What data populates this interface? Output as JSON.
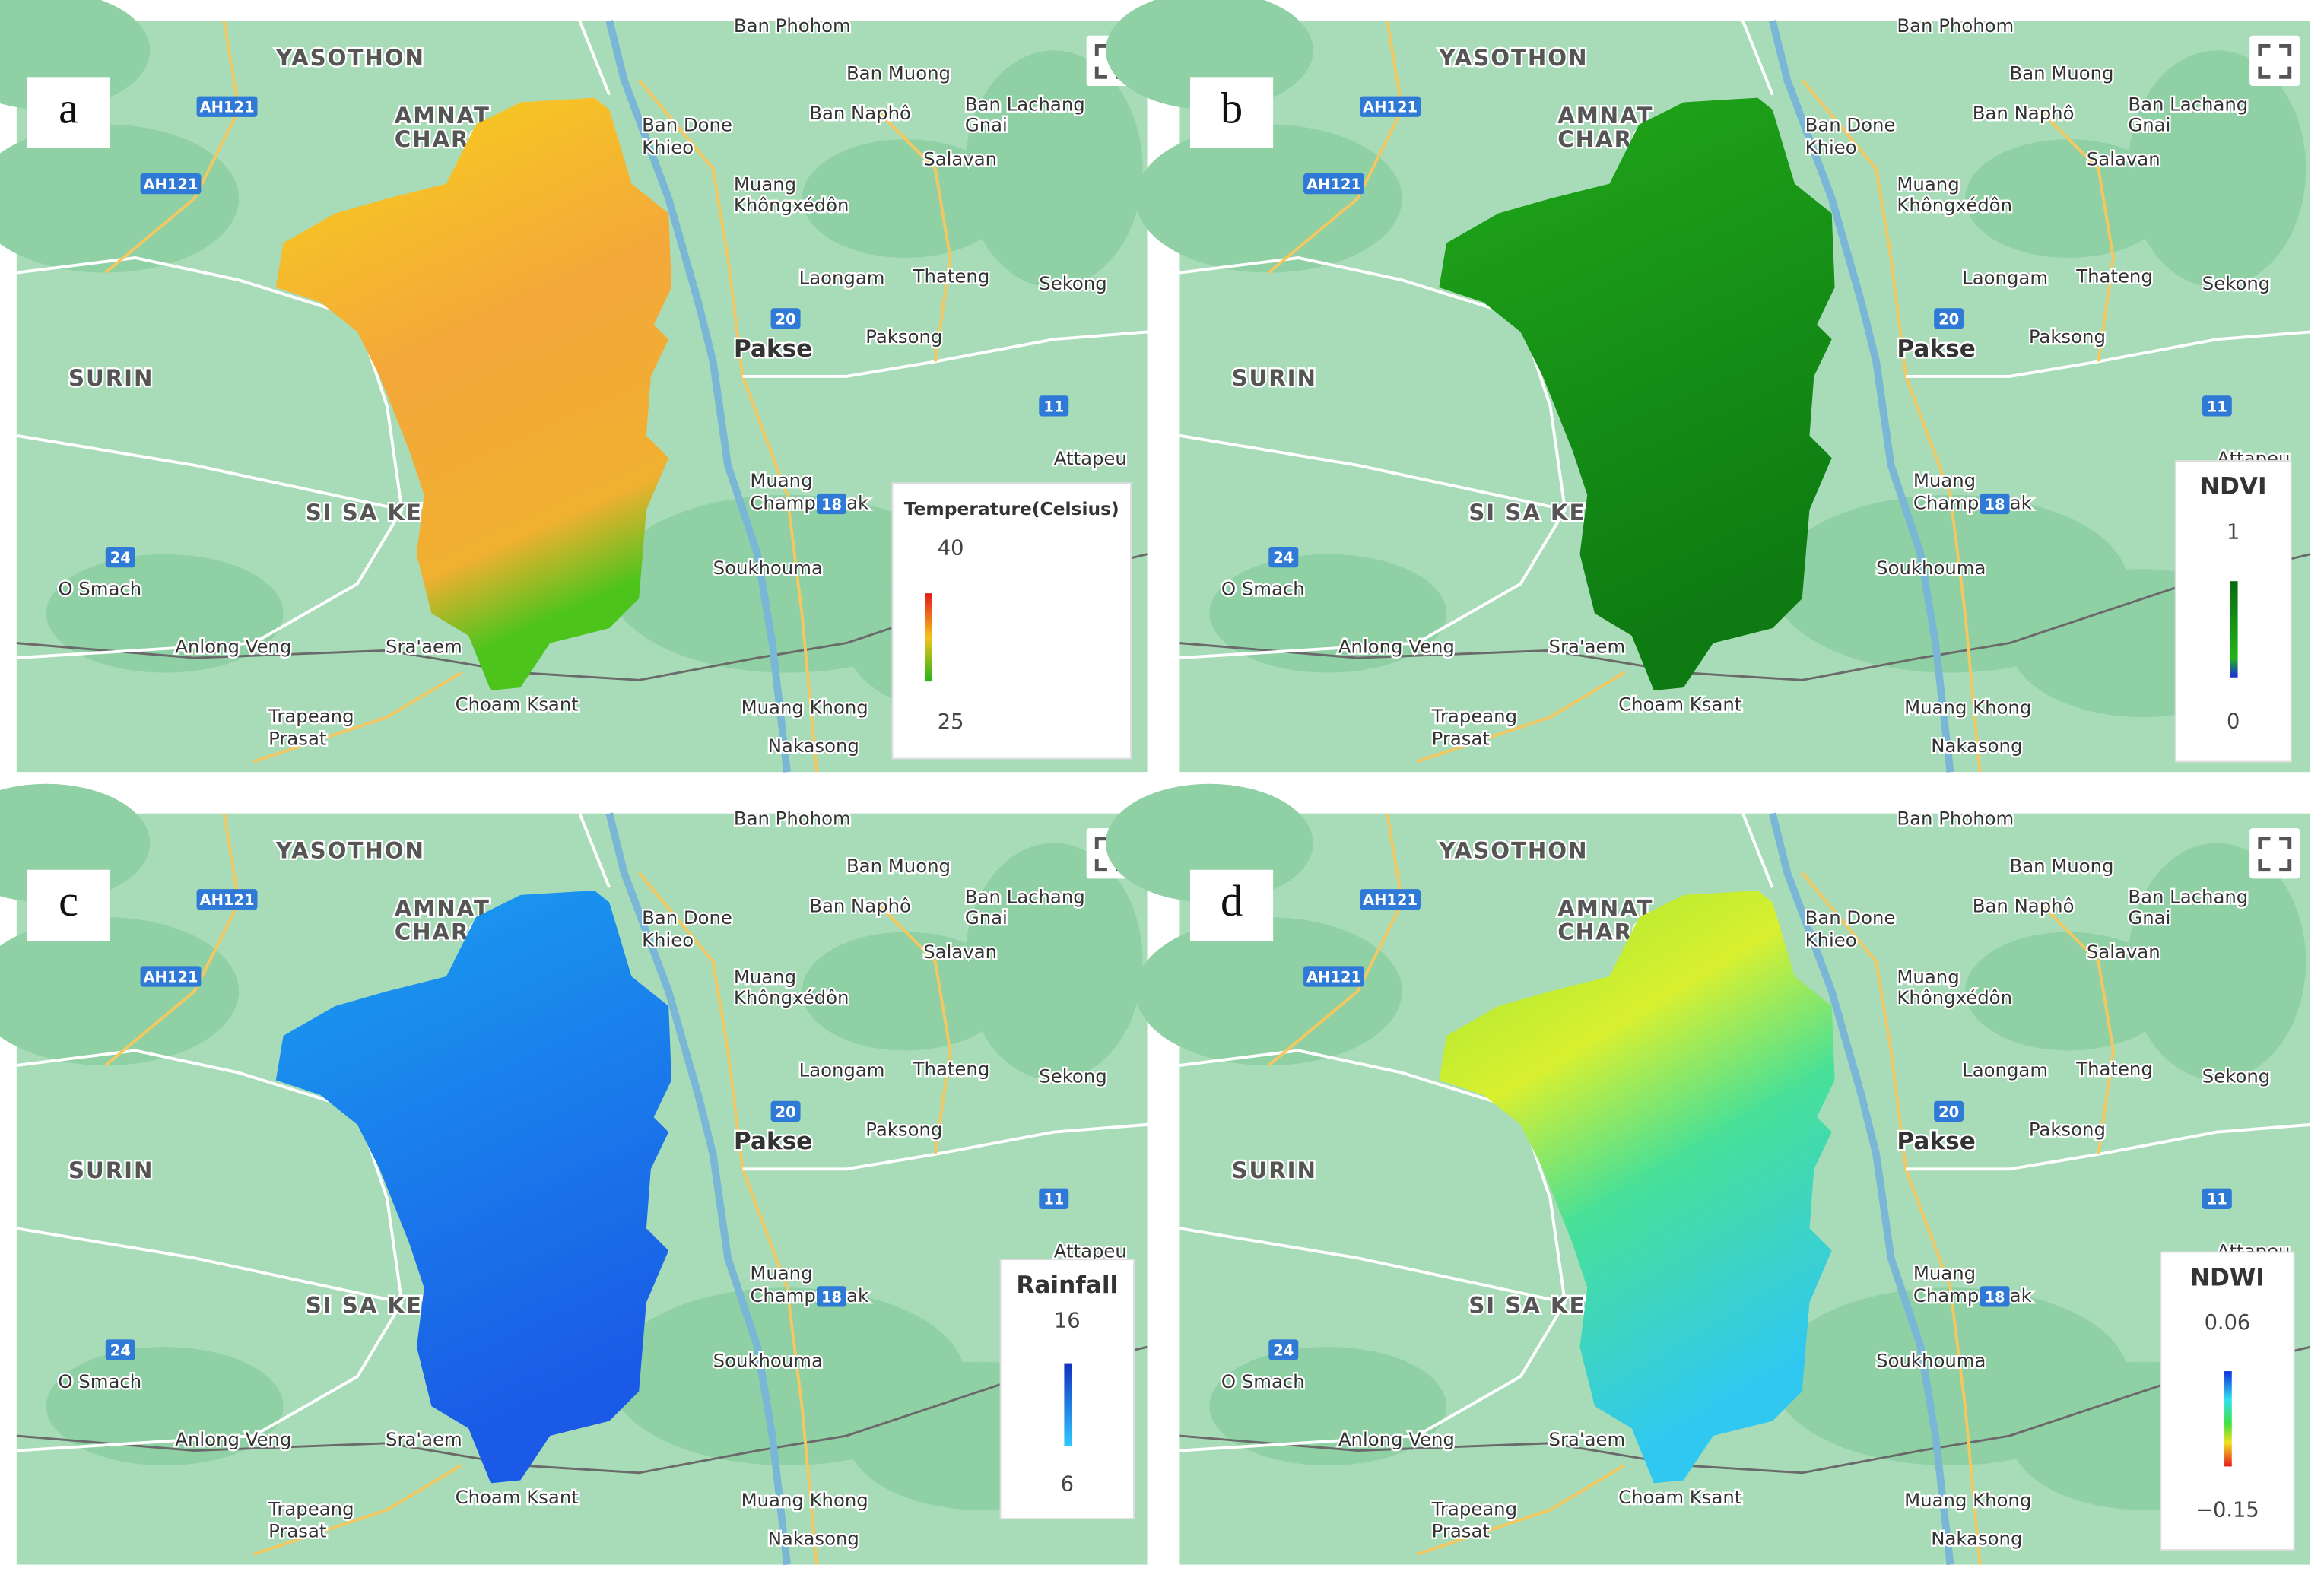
{
  "panels": [
    {
      "letter": "a",
      "legend": {
        "title": "Temperature(Celsius)",
        "max": "40",
        "min": "25"
      }
    },
    {
      "letter": "b",
      "legend": {
        "title": "NDVI",
        "max": "1",
        "min": "0"
      }
    },
    {
      "letter": "c",
      "legend": {
        "title": "Rainfall",
        "max": "16",
        "min": "6"
      }
    },
    {
      "letter": "d",
      "legend": {
        "title": "NDWI",
        "max": "0.06",
        "min": "−0.15"
      }
    }
  ],
  "map_labels": [
    "YASOTHON",
    "AMNAT",
    "CHAROEN",
    "SURIN",
    "SI SA KET",
    "Ban Phohom",
    "Ban Muong",
    "Ban Naphô",
    "Ban Lachang",
    "Gnai",
    "Ban Done",
    "Khieo",
    "Muang",
    "Khôngxédôn",
    "Salavan",
    "Laongam",
    "Thateng",
    "Sekong",
    "Pakse",
    "Paksong",
    "Attapeu",
    "Muang",
    "Champassak",
    "Soukhouma",
    "Muang Khong",
    "Nakasong",
    "Choam Ksant",
    "Sra'aem",
    "Anlong Veng",
    "Trapeang",
    "Prasat",
    "O Smach"
  ],
  "road_shields": [
    "AH121",
    "AH121",
    "20",
    "11",
    "18",
    "24"
  ]
}
